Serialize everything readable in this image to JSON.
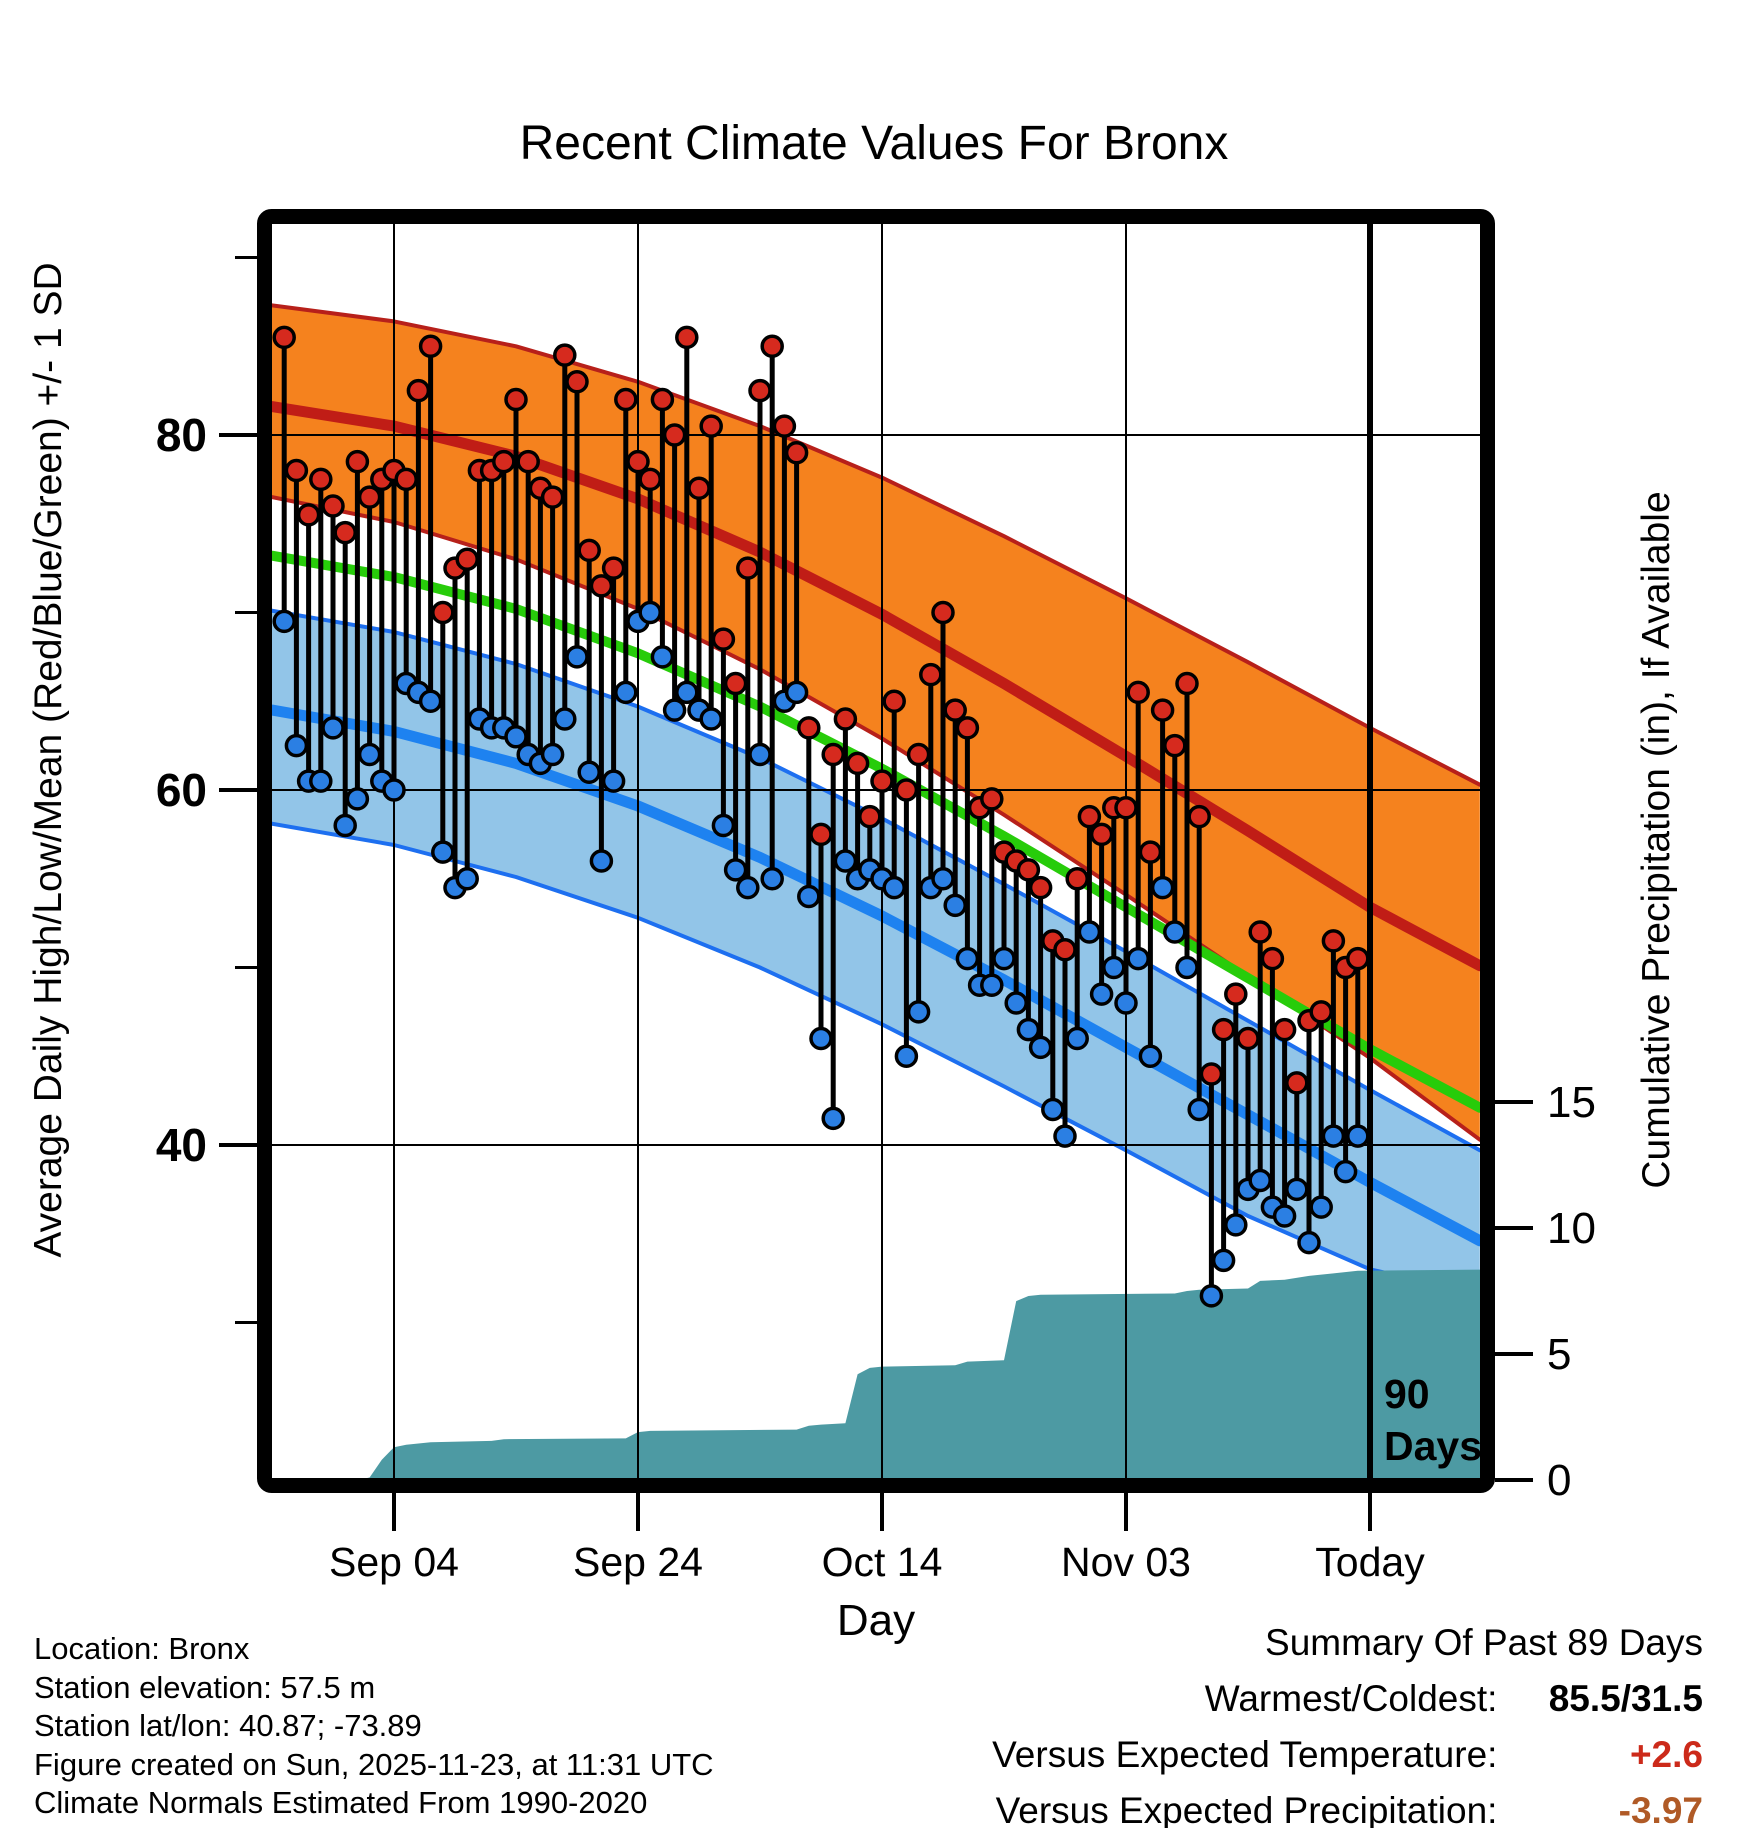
{
  "title": "Recent Climate Values For Bronx",
  "axes": {
    "x_label": "Day",
    "y_left_label": "Average Daily High/Low/Mean (Red/Blue/Green) +/- 1 SD",
    "y_right_label": "Cumulative Precipitation (in), If Available"
  },
  "footer_left": {
    "line1": "Location: Bronx",
    "line2": "Station elevation: 57.5 m",
    "line3": "Station lat/lon: 40.87; -73.89",
    "line4": "Figure created on Sun, 2025-11-23, at 11:31 UTC",
    "line5": "Climate Normals Estimated From 1990-2020"
  },
  "summary": {
    "title": "Summary Of Past 89 Days",
    "rows": [
      {
        "label": "Warmest/Coldest:  ",
        "value": "85.5/31.5",
        "color": "#000000"
      },
      {
        "label": "Versus Expected Temperature:  ",
        "value": "+2.6",
        "color": "#cc2a1a"
      },
      {
        "label": "Versus Expected Precipitation:  ",
        "value": "-3.97",
        "color": "#b05a26"
      }
    ]
  },
  "chart_data": {
    "type": "line",
    "subtype": "daily-high-low-stems with climate normal bands and cumulative precipitation area",
    "title": "Recent Climate Values For Bronx",
    "xlabel": "Day",
    "ylabel_left": "Average Daily High/Low/Mean (Red/Blue/Green) +/- 1 SD",
    "ylabel_right": "Cumulative Precipitation (in), If Available",
    "x_day0_date": "Aug 25",
    "x_ticks": [
      {
        "label": "Sep 04",
        "day": 10
      },
      {
        "label": "Sep 24",
        "day": 30
      },
      {
        "label": "Oct 14",
        "day": 50
      },
      {
        "label": "Nov 03",
        "day": 70
      },
      {
        "label": "Today",
        "day": 90
      }
    ],
    "temp_axis": {
      "major_ticks": [
        80,
        60,
        40
      ],
      "minor_ticks": [
        90,
        70,
        50,
        30
      ],
      "range_shown": [
        21,
        92
      ]
    },
    "precip_axis": {
      "ticks": [
        15,
        10,
        5,
        0
      ],
      "range_shown": [
        0,
        15
      ]
    },
    "grid": {
      "vertical_at_x_ticks": true,
      "horizontal_at_temp_major": true
    },
    "today_annotation": {
      "day": 90,
      "line1": "90",
      "line2": "Days"
    },
    "normals": {
      "days": [
        0,
        10,
        20,
        30,
        40,
        50,
        60,
        70,
        80,
        90,
        99
      ],
      "high_plus_sd": [
        87.3,
        86.4,
        85.0,
        83.0,
        80.5,
        77.6,
        74.3,
        70.8,
        67.2,
        63.5,
        60.3
      ],
      "high_mean": [
        81.6,
        80.5,
        78.8,
        76.4,
        73.4,
        69.9,
        66.0,
        61.9,
        57.7,
        53.4,
        50.1
      ],
      "high_minus_sd": [
        76.5,
        75.1,
        73.0,
        70.2,
        66.8,
        62.9,
        58.6,
        54.1,
        49.5,
        44.9,
        40.3
      ],
      "mean": [
        73.2,
        72.0,
        70.2,
        67.7,
        64.7,
        61.2,
        57.4,
        53.4,
        49.4,
        45.4,
        42.1
      ],
      "low_plus_sd": [
        70.1,
        68.9,
        67.1,
        64.7,
        61.8,
        58.4,
        54.7,
        50.9,
        47.0,
        43.1,
        39.7
      ],
      "low_mean": [
        64.5,
        63.3,
        61.5,
        59.1,
        56.2,
        52.9,
        49.3,
        45.5,
        41.7,
        37.9,
        34.6
      ],
      "low_minus_sd": [
        58.1,
        56.9,
        55.1,
        52.8,
        50.0,
        46.8,
        43.3,
        39.7,
        36.0,
        33.0,
        31.6
      ]
    },
    "daily": {
      "start_day": 1,
      "high": [
        85.5,
        78,
        75.5,
        77.5,
        76,
        74.5,
        78.5,
        76.5,
        77.5,
        78,
        77.5,
        82.5,
        85,
        70,
        72.5,
        73,
        78,
        78,
        78.5,
        82,
        78.5,
        77,
        76.5,
        84.5,
        83,
        73.5,
        71.5,
        72.5,
        82,
        78.5,
        77.5,
        82,
        80,
        85.5,
        77,
        80.5,
        68.5,
        66,
        72.5,
        82.5,
        85,
        80.5,
        79,
        63.5,
        57.5,
        62,
        64,
        61.5,
        58.5,
        60.5,
        65,
        60,
        62,
        66.5,
        70,
        64.5,
        63.5,
        59,
        59.5,
        56.5,
        56,
        55.5,
        54.5,
        51.5,
        51,
        55,
        58.5,
        57.5,
        59,
        59,
        65.5,
        56.5,
        64.5,
        62.5,
        66,
        58.5,
        44,
        46.5,
        48.5,
        46,
        52,
        50.5,
        46.5,
        43.5,
        47,
        47.5,
        51.5,
        50,
        50.5
      ],
      "low": [
        69.5,
        62.5,
        60.5,
        60.5,
        63.5,
        58,
        59.5,
        62,
        60.5,
        60,
        66,
        65.5,
        65,
        56.5,
        54.5,
        55,
        64,
        63.5,
        63.5,
        63,
        62,
        61.5,
        62,
        64,
        67.5,
        61,
        56,
        60.5,
        65.5,
        69.5,
        70,
        67.5,
        64.5,
        65.5,
        64.5,
        64,
        58,
        55.5,
        54.5,
        62,
        55,
        65,
        65.5,
        54,
        46,
        41.5,
        56,
        55,
        55.5,
        55,
        54.5,
        45,
        47.5,
        54.5,
        55,
        53.5,
        50.5,
        49,
        49,
        50.5,
        48,
        46.5,
        45.5,
        42,
        40.5,
        46,
        52,
        48.5,
        50,
        48,
        50.5,
        45,
        54.5,
        52,
        50,
        42,
        31.5,
        33.5,
        35.5,
        37.5,
        38,
        36.5,
        36,
        37.5,
        34.5,
        36.5,
        40.5,
        38.5,
        40.5
      ]
    },
    "precip_cumulative_in": [
      {
        "day": 0,
        "v": 0
      },
      {
        "day": 7,
        "v": 0
      },
      {
        "day": 8,
        "v": 0.1
      },
      {
        "day": 9,
        "v": 0.8
      },
      {
        "day": 10,
        "v": 1.3
      },
      {
        "day": 11,
        "v": 1.4
      },
      {
        "day": 13,
        "v": 1.5
      },
      {
        "day": 18,
        "v": 1.55
      },
      {
        "day": 19,
        "v": 1.62
      },
      {
        "day": 29,
        "v": 1.65
      },
      {
        "day": 30,
        "v": 1.9
      },
      {
        "day": 31,
        "v": 1.95
      },
      {
        "day": 43,
        "v": 2.0
      },
      {
        "day": 44,
        "v": 2.15
      },
      {
        "day": 45,
        "v": 2.2
      },
      {
        "day": 47,
        "v": 2.25
      },
      {
        "day": 48,
        "v": 4.2
      },
      {
        "day": 49,
        "v": 4.45
      },
      {
        "day": 50,
        "v": 4.5
      },
      {
        "day": 56,
        "v": 4.55
      },
      {
        "day": 57,
        "v": 4.7
      },
      {
        "day": 60,
        "v": 4.75
      },
      {
        "day": 61,
        "v": 7.1
      },
      {
        "day": 62,
        "v": 7.3
      },
      {
        "day": 63,
        "v": 7.35
      },
      {
        "day": 74,
        "v": 7.4
      },
      {
        "day": 75,
        "v": 7.5
      },
      {
        "day": 76,
        "v": 7.55
      },
      {
        "day": 80,
        "v": 7.6
      },
      {
        "day": 81,
        "v": 7.9
      },
      {
        "day": 83,
        "v": 7.95
      },
      {
        "day": 85,
        "v": 8.1
      },
      {
        "day": 87,
        "v": 8.2
      },
      {
        "day": 89,
        "v": 8.3
      },
      {
        "day": 99,
        "v": 8.35
      }
    ],
    "colors": {
      "orange_band": "#f5821e",
      "band_edge_red": "#b7201a",
      "high_mean_line": "#c01d16",
      "mean_line_green": "#27cc0a",
      "blue_band": "#92c5e8",
      "band_edge_blue": "#1d6ff0",
      "low_mean_line": "#1e82f0",
      "high_dot": "#d62a1e",
      "low_dot": "#2b7fe3",
      "precip_area": "#4d9aa3",
      "grid": "#000000",
      "frame": "#000000"
    },
    "summary_stats": {
      "period_days": 89,
      "warmest": 85.5,
      "coldest": 31.5,
      "vs_expected_temperature": 2.6,
      "vs_expected_precipitation": -3.97
    }
  }
}
